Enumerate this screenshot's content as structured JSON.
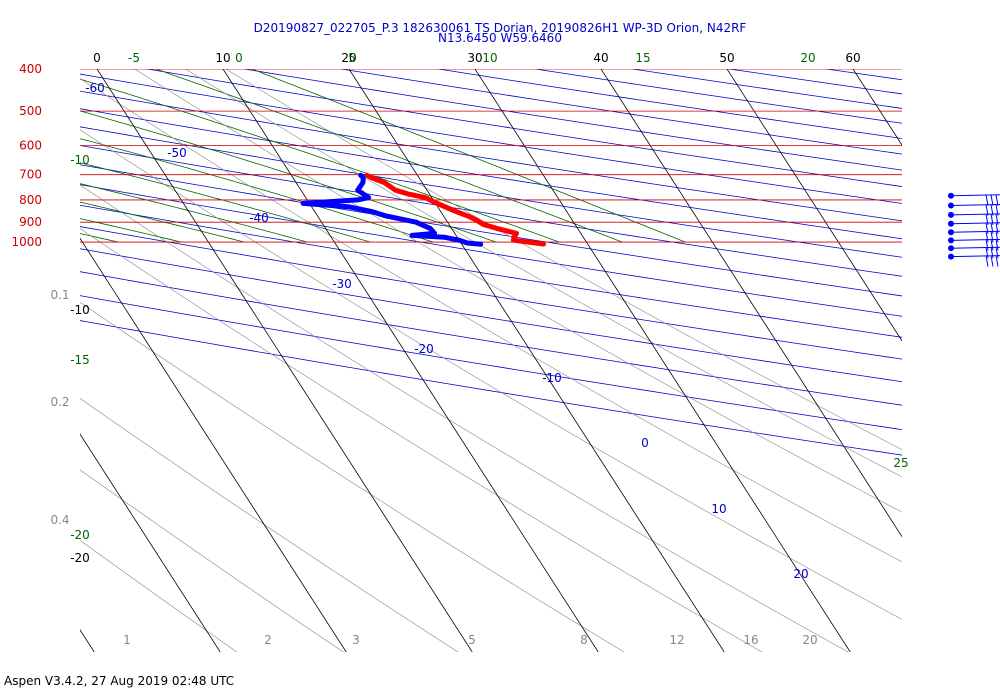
{
  "title": "D20190827_022705_P.3 182630061 TS Dorian, 20190826H1 WP-3D Orion, N42RF",
  "subtitle": "N13.6450 W59.6460",
  "footer": "Aspen V3.4.2, 27 Aug 2019  02:48 UTC",
  "colors": {
    "isobar": "#cc0000",
    "isotherm": "#000000",
    "dry_adiabat": "#0000cc",
    "moist_adiabat": "#006600",
    "mixing_ratio": "#888888",
    "temperature": "#ff0000",
    "dewpoint": "#0000ff"
  },
  "chart_data": {
    "type": "line",
    "diagram": "skew-T log-P",
    "pressure_levels": [
      400,
      500,
      600,
      700,
      800,
      900,
      1000
    ],
    "temperature_ticks": [
      0,
      10,
      20,
      30,
      40,
      50,
      60
    ],
    "isotherm_labels": [
      -10,
      -20
    ],
    "dry_adiabat_labels": [
      -60,
      -50,
      -40,
      -30,
      -20,
      -10,
      0,
      10,
      20
    ],
    "moist_adiabat_labels": [
      -5,
      0,
      5,
      10,
      15,
      20,
      25,
      -10,
      -15,
      -20
    ],
    "mixing_ratio_labels": [
      "0.1",
      "0.2",
      "0.4",
      "1",
      "2",
      "3",
      "5",
      "8",
      "12",
      "16",
      "20"
    ],
    "series": [
      {
        "name": "Temperature",
        "points": [
          {
            "p": 702,
            "t": 16.0
          },
          {
            "p": 710,
            "t": 16.2
          },
          {
            "p": 730,
            "t": 17.0
          },
          {
            "p": 760,
            "t": 17.5
          },
          {
            "p": 775,
            "t": 18.3
          },
          {
            "p": 790,
            "t": 19.5
          },
          {
            "p": 810,
            "t": 20.0
          },
          {
            "p": 830,
            "t": 20.6
          },
          {
            "p": 850,
            "t": 21.2
          },
          {
            "p": 870,
            "t": 21.9
          },
          {
            "p": 890,
            "t": 22.4
          },
          {
            "p": 910,
            "t": 22.7
          },
          {
            "p": 930,
            "t": 23.6
          },
          {
            "p": 955,
            "t": 24.9
          },
          {
            "p": 975,
            "t": 24.5
          },
          {
            "p": 990,
            "t": 24.3
          },
          {
            "p": 1010,
            "t": 26.5
          }
        ]
      },
      {
        "name": "Dewpoint",
        "points": [
          {
            "p": 702,
            "t": 15.5
          },
          {
            "p": 710,
            "t": 15.6
          },
          {
            "p": 730,
            "t": 15.3
          },
          {
            "p": 760,
            "t": 14.5
          },
          {
            "p": 790,
            "t": 15.0
          },
          {
            "p": 800,
            "t": 14.0
          },
          {
            "p": 815,
            "t": 9.5
          },
          {
            "p": 830,
            "t": 13.0
          },
          {
            "p": 850,
            "t": 14.5
          },
          {
            "p": 870,
            "t": 15.4
          },
          {
            "p": 900,
            "t": 17.5
          },
          {
            "p": 930,
            "t": 18.3
          },
          {
            "p": 955,
            "t": 18.4
          },
          {
            "p": 965,
            "t": 16.5
          },
          {
            "p": 975,
            "t": 19.0
          },
          {
            "p": 990,
            "t": 20.0
          },
          {
            "p": 1005,
            "t": 20.5
          },
          {
            "p": 1012,
            "t": 21.5
          }
        ]
      }
    ],
    "wind_barbs": [
      {
        "p": 750
      },
      {
        "p": 790
      },
      {
        "p": 830
      },
      {
        "p": 870
      },
      {
        "p": 910
      },
      {
        "p": 950
      },
      {
        "p": 990
      },
      {
        "p": 1035
      }
    ]
  }
}
